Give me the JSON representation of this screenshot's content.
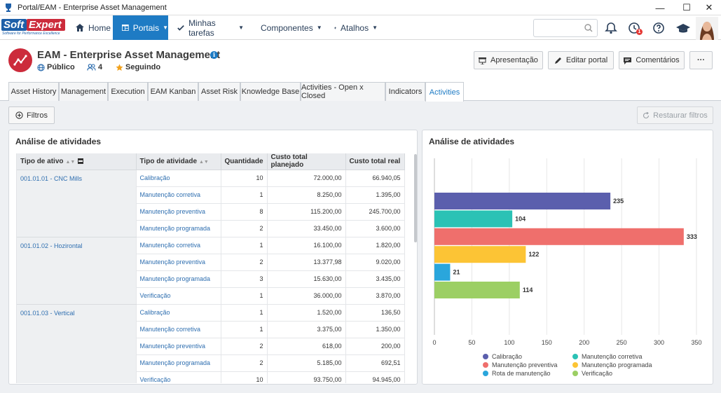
{
  "window": {
    "title": "Portal/EAM - Enterprise Asset Management",
    "minimize": "—",
    "maximize": "☐",
    "close": "✕"
  },
  "brand": {
    "logo_part1": "Soft",
    "logo_part2": "Expert",
    "tagline": "Software for Performance Excellence"
  },
  "nav": {
    "items": [
      {
        "label": "Home",
        "icon": "home-icon"
      },
      {
        "label": "Portais",
        "icon": "portal-icon",
        "active": true
      },
      {
        "label": "Minhas tarefas",
        "icon": "check-icon"
      },
      {
        "label": "Componentes",
        "icon": "trophy-icon"
      },
      {
        "label": "Atalhos",
        "icon": "lightning-icon"
      }
    ],
    "search_placeholder": "",
    "notification_count": "1"
  },
  "portal": {
    "title": "EAM - Enterprise Asset Management",
    "visibility": "Público",
    "members": "4",
    "follow_status": "Seguindo",
    "buttons": {
      "presentation": "Apresentação",
      "edit": "Editar portal",
      "comments": "Comentários",
      "more": "···"
    }
  },
  "tabs": [
    "Asset History",
    "Management",
    "Execution",
    "EAM Kanban",
    "Asset Risk",
    "Knowledge Base",
    "Activities - Open x Closed",
    "Indicators",
    "Activities"
  ],
  "active_tab": "Activities",
  "filters": {
    "filter_label": "Filtros",
    "reset_label": "Restaurar filtros"
  },
  "table_panel": {
    "title": "Análise de atividades",
    "columns": [
      "Tipo de ativo",
      "Tipo de atividade",
      "Quantidade",
      "Custo total planejado",
      "Custo total real"
    ],
    "groups": [
      {
        "asset": "001.01.01 - CNC Mills",
        "rows": [
          {
            "activity": "Calibração",
            "qty": "10",
            "planned": "72.000,00",
            "real": "66.940,05"
          },
          {
            "activity": "Manutenção corretiva",
            "qty": "1",
            "planned": "8.250,00",
            "real": "1.395,00"
          },
          {
            "activity": "Manutenção preventiva",
            "qty": "8",
            "planned": "115.200,00",
            "real": "245.700,00"
          },
          {
            "activity": "Manutenção programada",
            "qty": "2",
            "planned": "33.450,00",
            "real": "3.600,00"
          }
        ]
      },
      {
        "asset": "001.01.02 - Hozirontal",
        "rows": [
          {
            "activity": "Manutenção corretiva",
            "qty": "1",
            "planned": "16.100,00",
            "real": "1.820,00"
          },
          {
            "activity": "Manutenção preventiva",
            "qty": "2",
            "planned": "13.377,98",
            "real": "9.020,00"
          },
          {
            "activity": "Manutenção programada",
            "qty": "3",
            "planned": "15.630,00",
            "real": "3.435,00"
          },
          {
            "activity": "Verificação",
            "qty": "1",
            "planned": "36.000,00",
            "real": "3.870,00"
          }
        ]
      },
      {
        "asset": "001.01.03 - Vertical",
        "rows": [
          {
            "activity": "Calibração",
            "qty": "1",
            "planned": "1.520,00",
            "real": "136,50"
          },
          {
            "activity": "Manutenção corretiva",
            "qty": "1",
            "planned": "3.375,00",
            "real": "1.350,00"
          },
          {
            "activity": "Manutenção preventiva",
            "qty": "2",
            "planned": "618,00",
            "real": "200,00"
          },
          {
            "activity": "Manutenção programada",
            "qty": "2",
            "planned": "5.185,00",
            "real": "692,51"
          },
          {
            "activity": "Verificação",
            "qty": "10",
            "planned": "93.750,00",
            "real": "94.945,00"
          }
        ]
      }
    ]
  },
  "chart_panel": {
    "title": "Análise de atividades"
  },
  "chart_data": {
    "type": "bar",
    "orientation": "horizontal",
    "title": "Análise de atividades",
    "categories": [
      "Calibração",
      "Manutenção corretiva",
      "Manutenção preventiva",
      "Manutenção programada",
      "Rota de manutenção",
      "Verificação"
    ],
    "values": [
      235,
      104,
      333,
      122,
      21,
      114
    ],
    "colors": [
      "#5b5fad",
      "#2bc2b5",
      "#ef6f6c",
      "#fcc435",
      "#2aa6dc",
      "#9ccf64"
    ],
    "xlim": [
      0,
      350
    ],
    "xticks": [
      "0",
      "50",
      "100",
      "150",
      "200",
      "250",
      "300",
      "350"
    ],
    "data_labels": [
      "235",
      "104",
      "333",
      "122",
      "21",
      "114"
    ],
    "grid": true,
    "legend_position": "bottom"
  }
}
